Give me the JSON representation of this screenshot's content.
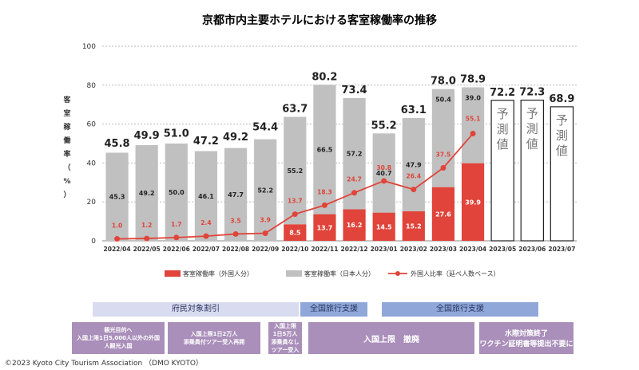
{
  "chart_data": {
    "type": "bar",
    "title": "京都市内主要ホテルにおける客室稼働率の推移",
    "ylabel": "客室稼働率（%）",
    "ylim": [
      0,
      100
    ],
    "yticks": [
      0,
      20,
      40,
      60,
      80,
      100
    ],
    "categories": [
      "2022/04",
      "2022/05",
      "2022/06",
      "2022/07",
      "2022/08",
      "2022/09",
      "2022/10",
      "2022/11",
      "2022/12",
      "2023/01",
      "2023/02",
      "2023/03",
      "2023/04",
      "2023/05",
      "2023/06",
      "2023/07"
    ],
    "series": [
      {
        "name": "客室稼働率（外国人分）",
        "values": [
          null,
          null,
          null,
          null,
          null,
          null,
          8.5,
          13.7,
          16.2,
          14.5,
          15.2,
          27.6,
          39.9,
          null,
          null,
          null
        ],
        "color": "#e0443a"
      },
      {
        "name": "客室稼働率（日本人分）",
        "values": [
          45.3,
          49.2,
          50.0,
          46.1,
          47.7,
          52.2,
          55.2,
          66.5,
          57.2,
          40.7,
          47.9,
          50.4,
          39.0,
          null,
          null,
          null
        ],
        "color": "#c0c0c0"
      },
      {
        "name": "外国人比率（延べ人数ベース）",
        "type": "line",
        "values": [
          1.0,
          1.2,
          1.7,
          2.4,
          3.5,
          3.9,
          13.7,
          18.3,
          24.7,
          30.8,
          26.4,
          37.5,
          55.1,
          null,
          null,
          null
        ],
        "color": "#e0443a"
      }
    ],
    "totals": [
      "45.8",
      "49.9",
      "51.0",
      "47.2",
      "49.2",
      "54.4",
      "63.7",
      "80.2",
      "73.4",
      "55.2",
      "63.1",
      "78.0",
      "78.9",
      "72.2",
      "72.3",
      "68.9"
    ],
    "forecast_label": "予測値",
    "forecast_indices": [
      13,
      14,
      15
    ]
  },
  "bands": [
    {
      "label": "府民対象割引",
      "color": "#d9dbf0"
    },
    {
      "label": "全国旅行支援",
      "color": "#8fa8d9"
    },
    {
      "label": "全国旅行支援",
      "color": "#8fa8d9"
    }
  ],
  "boxes": [
    {
      "lines": [
        "観光目的へ",
        "入国上限1日5,000人以外の外国",
        "人観光入国"
      ]
    },
    {
      "lines": [
        "入国上限1日2万人",
        "添乗員付ツアー受入再開"
      ]
    },
    {
      "lines": [
        "入国上限",
        "1日5万人",
        "添乗員なし",
        "ツアー受入"
      ]
    },
    {
      "lines": [
        "入国上限　撤廃"
      ]
    },
    {
      "lines": [
        "水際対策終了",
        "ワクチン証明書等提出不要に"
      ]
    }
  ],
  "copyright": "©2023 Kyoto City Tourism Association （DMO KYOTO）"
}
